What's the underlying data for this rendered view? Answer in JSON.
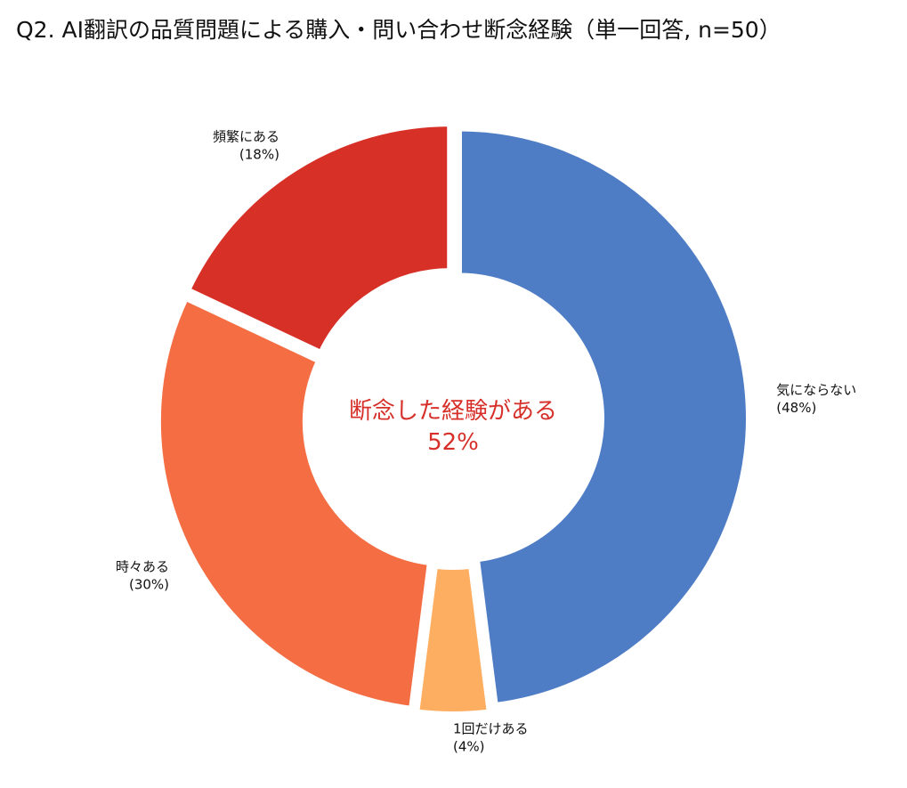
{
  "chart_data": {
    "type": "pie",
    "style": "donut",
    "title": "Q2. AI翻訳の品質問題による購入・問い合わせ断念経験（単一回答, n=50）",
    "center_label": {
      "line1": "断念した経験がある",
      "line2": "52%"
    },
    "slices": [
      {
        "label": "気にならない",
        "value": 48,
        "pct_label": "(48%)",
        "color": "#4e7cc5"
      },
      {
        "label": "1回だけある",
        "value": 4,
        "pct_label": "(4%)",
        "color": "#fdae61"
      },
      {
        "label": "時々ある",
        "value": 30,
        "pct_label": "(30%)",
        "color": "#f46d43"
      },
      {
        "label": "頻繁にある",
        "value": 18,
        "pct_label": "(18%)",
        "color": "#d73027"
      }
    ],
    "start": "12 o'clock",
    "direction": "clockwise"
  }
}
